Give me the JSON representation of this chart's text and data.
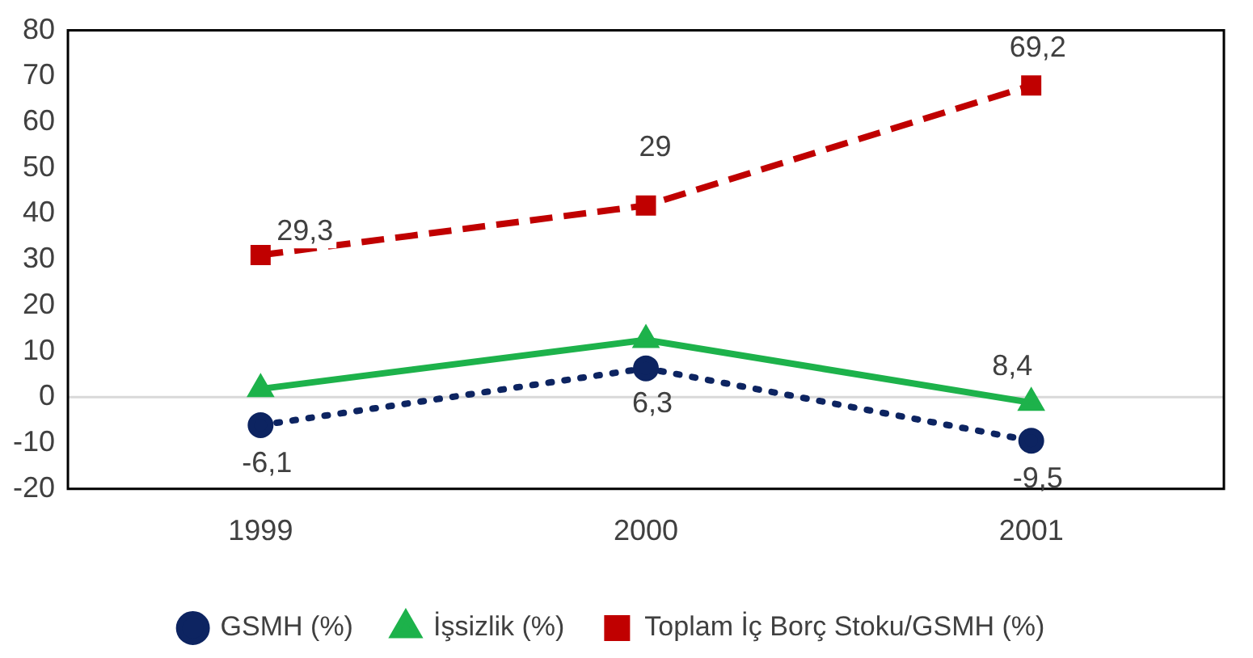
{
  "chart_data": {
    "type": "line",
    "categories": [
      "1999",
      "2000",
      "2001"
    ],
    "series": [
      {
        "name": "GSMH (%)",
        "color": "#0d2461",
        "values": [
          -6.1,
          6.3,
          -9.5
        ],
        "marker": "circle",
        "line_style": "dotted",
        "value_labels": [
          "-6,1",
          "6,3",
          "-9,5"
        ]
      },
      {
        "name": "İşsizlik (%)",
        "color": "#1db24b",
        "values": [
          1.8,
          12.5,
          -1.2
        ],
        "marker": "triangle",
        "line_style": "solid"
      },
      {
        "name": "Toplam İç Borç Stoku/GSMH (%)",
        "color": "#c00000",
        "values": [
          31,
          41.8,
          68
        ],
        "marker": "square",
        "line_style": "dashed"
      }
    ],
    "ylim": [
      -20,
      80
    ],
    "yticks": [
      -20,
      -10,
      0,
      10,
      20,
      30,
      40,
      50,
      60,
      70,
      80
    ],
    "grid": false,
    "legend": "bottom",
    "ref_lines": [
      {
        "axis": "y",
        "value": 0,
        "color": "#d9d9d9"
      }
    ],
    "annotations": [
      "29,3",
      "29",
      "69,2",
      "8,4"
    ]
  }
}
